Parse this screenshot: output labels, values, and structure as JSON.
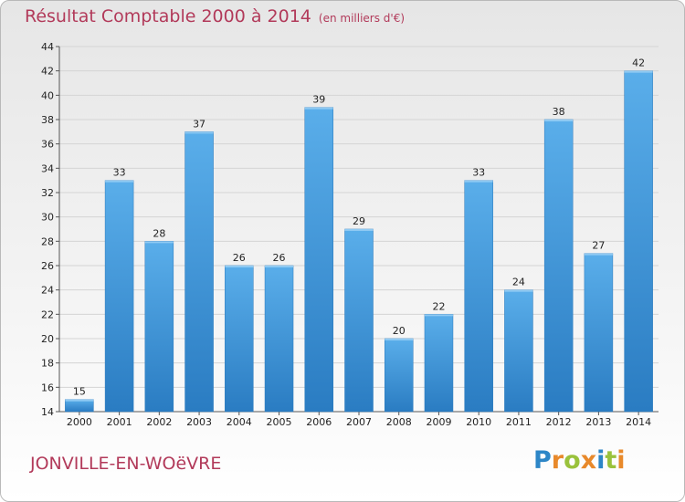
{
  "header": {
    "title": "Résultat Comptable 2000 à 2014",
    "unit": "(en milliers d'€)"
  },
  "footer": {
    "commune": "JONVILLE-EN-WOëVRE",
    "brand": "Proxiti",
    "brand_letters": [
      {
        "ch": "P",
        "color": "#2d86c7"
      },
      {
        "ch": "r",
        "color": "#e8892b"
      },
      {
        "ch": "o",
        "color": "#9ac23c"
      },
      {
        "ch": "x",
        "color": "#e8892b"
      },
      {
        "ch": "i",
        "color": "#2d86c7"
      },
      {
        "ch": "t",
        "color": "#9ac23c"
      },
      {
        "ch": "i",
        "color": "#e8892b"
      }
    ]
  },
  "chart_data": {
    "type": "bar",
    "title": "Résultat Comptable 2000 à 2014",
    "subtitle": "(en milliers d'€)",
    "xlabel": "",
    "ylabel": "",
    "categories": [
      "2000",
      "2001",
      "2002",
      "2003",
      "2004",
      "2005",
      "2006",
      "2007",
      "2008",
      "2009",
      "2010",
      "2011",
      "2012",
      "2013",
      "2014"
    ],
    "values": [
      15,
      33,
      28,
      37,
      26,
      26,
      39,
      29,
      20,
      22,
      33,
      24,
      38,
      27,
      42
    ],
    "ylim": [
      14,
      44
    ],
    "yticks": [
      14,
      16,
      18,
      20,
      22,
      24,
      26,
      28,
      30,
      32,
      34,
      36,
      38,
      40,
      42,
      44
    ],
    "grid": true,
    "bar_color": "#3d95d9"
  }
}
